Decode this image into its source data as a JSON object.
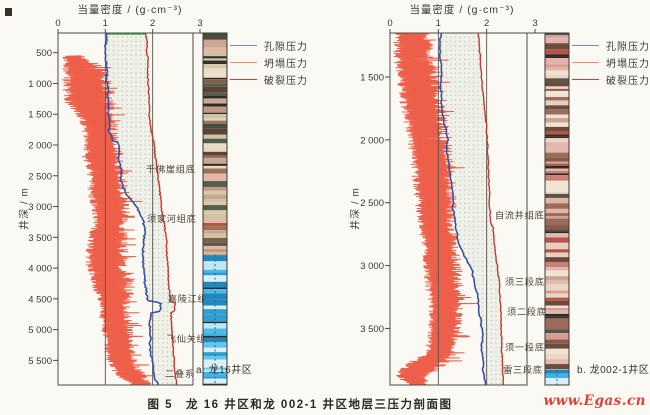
{
  "figure": {
    "caption": "图 5　龙 16 井区和龙 002-1 井区地层三压力剖面图",
    "watermark": "www.Egas.cn"
  },
  "legend": {
    "items": [
      {
        "label": "孔隙压力",
        "color": "#7d89aa"
      },
      {
        "label": "坍塌压力",
        "color": "#f0876e"
      },
      {
        "label": "破裂压力",
        "color": "#d0402f"
      }
    ]
  },
  "colors": {
    "pore_line": "#3a50a0",
    "collapse_line": "#ee5f49",
    "fracture_line": "#c8382c",
    "grid_line": "#55544c",
    "frame": "#4b4b44",
    "window_fill": "#edf0e8",
    "window_dots": "#b9c2b4",
    "window_top_edge": "#44a05a",
    "lith_border": "#3a3a32",
    "carbonate_line": "#1a6c94",
    "lith_clastic_a": [
      "#dcc8a8",
      "#c19a83",
      "#e6b5a8",
      "#7e604a",
      "#535e4c",
      "#b2593f",
      "#ecdfc9",
      "#5c4334",
      "#d0c2a2",
      "#9a715a",
      "#e2cfb6",
      "#45503f",
      "#caa794",
      "#e8d8c0"
    ],
    "lith_clastic_b": [
      "#e4b4ac",
      "#d79d92",
      "#c98175",
      "#ebd6c6",
      "#9d6b59",
      "#b5554a",
      "#f0e3d3",
      "#6b4b3d",
      "#debbae",
      "#56544c",
      "#cba494",
      "#e8cfc2",
      "#8a5a48"
    ],
    "lith_carbonate": [
      "#42b4e4",
      "#65c6ec",
      "#2f9fd3",
      "#d9effa",
      "#4dbbe9",
      "#2187bd",
      "#bfe6f5"
    ]
  },
  "chart_data": [
    {
      "type": "line",
      "id": "a",
      "panel_label": "a. 龙16井区",
      "title": "当量密度 / (g·cm⁻³)",
      "ylabel": "井深 / m",
      "xlim": [
        0,
        3
      ],
      "xticks": [
        "0",
        "1",
        "2",
        "3"
      ],
      "grid_x_values": [
        1,
        2
      ],
      "ylim": [
        180,
        5900
      ],
      "yticks": [
        {
          "v": 500,
          "label": "500"
        },
        {
          "v": 1000,
          "label": "1 000"
        },
        {
          "v": 1500,
          "label": "1 500"
        },
        {
          "v": 2000,
          "label": "2 000"
        },
        {
          "v": 2500,
          "label": "2 500"
        },
        {
          "v": 3000,
          "label": "3 000"
        },
        {
          "v": 3500,
          "label": "3 500"
        },
        {
          "v": 4000,
          "label": "4 000"
        },
        {
          "v": 4500,
          "label": "4 500"
        },
        {
          "v": 5000,
          "label": "5 000"
        },
        {
          "v": 5500,
          "label": "5 500"
        }
      ],
      "window_top_edge": true,
      "series": [
        {
          "name": "孔隙压力",
          "role": "pore",
          "points": [
            [
              180,
              1.04
            ],
            [
              350,
              1.01
            ],
            [
              500,
              1.0
            ],
            [
              650,
              1.02
            ],
            [
              800,
              1.04
            ],
            [
              950,
              1.03
            ],
            [
              1100,
              1.06
            ],
            [
              1250,
              1.05
            ],
            [
              1400,
              1.07
            ],
            [
              1550,
              1.06
            ],
            [
              1650,
              1.1
            ],
            [
              1750,
              1.07
            ],
            [
              1850,
              1.12
            ],
            [
              1930,
              1.14
            ],
            [
              1960,
              1.28
            ],
            [
              2100,
              1.3
            ],
            [
              2250,
              1.28
            ],
            [
              2400,
              1.34
            ],
            [
              2550,
              1.32
            ],
            [
              2700,
              1.38
            ],
            [
              2820,
              1.46
            ],
            [
              2950,
              1.6
            ],
            [
              3080,
              1.72
            ],
            [
              3200,
              1.79
            ],
            [
              3350,
              1.83
            ],
            [
              3500,
              1.82
            ],
            [
              3650,
              1.8
            ],
            [
              3800,
              1.79
            ],
            [
              3950,
              1.8
            ],
            [
              4100,
              1.82
            ],
            [
              4250,
              1.84
            ],
            [
              4400,
              1.87
            ],
            [
              4530,
              1.9
            ],
            [
              4560,
              2.16
            ],
            [
              4700,
              2.17
            ],
            [
              4730,
              1.96
            ],
            [
              4900,
              1.94
            ],
            [
              5100,
              1.95
            ],
            [
              5300,
              1.94
            ],
            [
              5500,
              1.99
            ],
            [
              5700,
              2.03
            ],
            [
              5820,
              2.06
            ],
            [
              5900,
              2.12
            ]
          ]
        },
        {
          "name": "坍塌压力",
          "role": "collapse",
          "envelope": [
            [
              550,
              0.1,
              0.5
            ],
            [
              700,
              0.06,
              0.95
            ],
            [
              850,
              0.1,
              1.1
            ],
            [
              1000,
              0.06,
              1.18
            ],
            [
              1150,
              0.1,
              1.22
            ],
            [
              1300,
              0.12,
              1.25
            ],
            [
              1450,
              0.3,
              1.18
            ],
            [
              1600,
              0.45,
              1.28
            ],
            [
              1750,
              0.5,
              1.3
            ],
            [
              1900,
              0.52,
              1.28
            ],
            [
              2050,
              0.55,
              1.33
            ],
            [
              2200,
              0.5,
              1.42
            ],
            [
              2350,
              0.58,
              1.38
            ],
            [
              2500,
              0.6,
              1.42
            ],
            [
              2650,
              0.64,
              1.48
            ],
            [
              2800,
              0.6,
              1.45
            ],
            [
              2950,
              0.68,
              1.52
            ],
            [
              3100,
              0.72,
              1.54
            ],
            [
              3250,
              0.74,
              1.5
            ],
            [
              3400,
              0.66,
              1.46
            ],
            [
              3550,
              0.62,
              1.48
            ],
            [
              3700,
              0.58,
              1.5
            ],
            [
              3850,
              0.56,
              1.46
            ],
            [
              4000,
              0.6,
              1.5
            ],
            [
              4150,
              0.66,
              1.55
            ],
            [
              4300,
              0.72,
              1.62
            ],
            [
              4450,
              0.8,
              1.58
            ],
            [
              4600,
              0.88,
              1.52
            ],
            [
              4750,
              0.86,
              1.55
            ],
            [
              4900,
              0.88,
              1.57
            ],
            [
              5050,
              0.92,
              1.6
            ],
            [
              5200,
              0.95,
              1.63
            ],
            [
              5350,
              0.98,
              1.66
            ],
            [
              5500,
              1.02,
              1.7
            ],
            [
              5650,
              1.12,
              1.8
            ],
            [
              5800,
              1.3,
              1.92
            ],
            [
              5900,
              1.55,
              2.0
            ]
          ]
        },
        {
          "name": "破裂压力",
          "role": "fracture",
          "points": [
            [
              180,
              1.84
            ],
            [
              300,
              1.89
            ],
            [
              450,
              1.87
            ],
            [
              600,
              1.9
            ],
            [
              800,
              1.89
            ],
            [
              1000,
              1.91
            ],
            [
              1200,
              1.92
            ],
            [
              1400,
              1.93
            ],
            [
              1600,
              1.94
            ],
            [
              1800,
              1.97
            ],
            [
              1950,
              2.03
            ],
            [
              2150,
              2.05
            ],
            [
              2350,
              2.08
            ],
            [
              2550,
              2.12
            ],
            [
              2750,
              2.15
            ],
            [
              2950,
              2.18
            ],
            [
              3150,
              2.21
            ],
            [
              3350,
              2.26
            ],
            [
              3550,
              2.29
            ],
            [
              3750,
              2.3
            ],
            [
              3950,
              2.32
            ],
            [
              4150,
              2.33
            ],
            [
              4350,
              2.35
            ],
            [
              4530,
              2.37
            ],
            [
              4560,
              2.47
            ],
            [
              4700,
              2.46
            ],
            [
              4730,
              2.39
            ],
            [
              4900,
              2.4
            ],
            [
              5100,
              2.41
            ],
            [
              5300,
              2.43
            ],
            [
              5500,
              2.45
            ],
            [
              5700,
              2.47
            ],
            [
              5900,
              2.51
            ]
          ]
        }
      ],
      "formation_tops": [
        {
          "label": "千佛崖组底",
          "depth": 2400,
          "label_x": 1.86
        },
        {
          "label": "须家河组底",
          "depth": 3200,
          "label_x": 1.88
        },
        {
          "label": "嘉陵江组底",
          "depth": 4500,
          "label_x": 2.32
        },
        {
          "label": "飞仙关组底",
          "depth": 5150,
          "label_x": 2.3
        },
        {
          "label": "二叠系",
          "depth": 5720,
          "label_x": 2.26
        }
      ],
      "lithology_column": [
        {
          "from": 180,
          "to": 3790,
          "type": "clastic_a"
        },
        {
          "from": 3790,
          "to": 5900,
          "type": "carbonate"
        }
      ]
    },
    {
      "type": "line",
      "id": "b",
      "panel_label": "b. 龙002-1井区",
      "title": "当量密度 / (g·cm⁻³)",
      "ylabel": "井深 / m",
      "xlim": [
        0,
        3
      ],
      "xticks": [
        "0",
        "1",
        "2",
        "3"
      ],
      "grid_x_values": [
        1,
        2
      ],
      "ylim": [
        1150,
        3950
      ],
      "yticks": [
        {
          "v": 1500,
          "label": "1 500"
        },
        {
          "v": 2000,
          "label": "2 000"
        },
        {
          "v": 2500,
          "label": "2 500"
        },
        {
          "v": 3000,
          "label": "3 000"
        },
        {
          "v": 3500,
          "label": "3 500"
        }
      ],
      "window_top_edge": false,
      "series": [
        {
          "name": "孔隙压力",
          "role": "pore",
          "points": [
            [
              1150,
              1.05
            ],
            [
              1300,
              1.04
            ],
            [
              1450,
              1.06
            ],
            [
              1600,
              1.05
            ],
            [
              1750,
              1.08
            ],
            [
              1880,
              1.12
            ],
            [
              1970,
              1.2
            ],
            [
              2100,
              1.18
            ],
            [
              2250,
              1.24
            ],
            [
              2400,
              1.28
            ],
            [
              2550,
              1.31
            ],
            [
              2700,
              1.36
            ],
            [
              2850,
              1.45
            ],
            [
              2950,
              1.58
            ],
            [
              3050,
              1.7
            ],
            [
              3150,
              1.76
            ],
            [
              3250,
              1.81
            ],
            [
              3350,
              1.84
            ],
            [
              3450,
              1.88
            ],
            [
              3530,
              1.92
            ],
            [
              3650,
              1.9
            ],
            [
              3750,
              1.92
            ],
            [
              3850,
              1.93
            ],
            [
              3950,
              1.97
            ]
          ]
        },
        {
          "name": "坍塌压力",
          "role": "collapse",
          "envelope": [
            [
              1150,
              0.06,
              0.82
            ],
            [
              1300,
              0.06,
              0.96
            ],
            [
              1450,
              0.1,
              1.05
            ],
            [
              1600,
              0.16,
              1.1
            ],
            [
              1750,
              0.22,
              1.16
            ],
            [
              1900,
              0.3,
              1.22
            ],
            [
              2050,
              0.36,
              1.28
            ],
            [
              2200,
              0.42,
              1.36
            ],
            [
              2350,
              0.46,
              1.32
            ],
            [
              2500,
              0.5,
              1.4
            ],
            [
              2650,
              0.56,
              1.36
            ],
            [
              2800,
              0.62,
              1.42
            ],
            [
              2950,
              0.66,
              1.46
            ],
            [
              3100,
              0.7,
              1.5
            ],
            [
              3250,
              0.76,
              1.56
            ],
            [
              3400,
              0.8,
              1.52
            ],
            [
              3550,
              0.76,
              1.46
            ],
            [
              3700,
              0.7,
              1.42
            ],
            [
              3780,
              0.3,
              1.2
            ],
            [
              3870,
              0.08,
              0.9
            ],
            [
              3950,
              0.35,
              0.8
            ]
          ]
        },
        {
          "name": "破裂压力",
          "role": "fracture",
          "points": [
            [
              1150,
              1.83
            ],
            [
              1300,
              1.86
            ],
            [
              1450,
              1.88
            ],
            [
              1600,
              1.92
            ],
            [
              1750,
              1.96
            ],
            [
              1900,
              2.0
            ],
            [
              2050,
              2.02
            ],
            [
              2200,
              2.03
            ],
            [
              2350,
              2.05
            ],
            [
              2500,
              2.06
            ],
            [
              2650,
              2.08
            ],
            [
              2700,
              2.13
            ],
            [
              2850,
              2.16
            ],
            [
              3000,
              2.22
            ],
            [
              3150,
              2.26
            ],
            [
              3300,
              2.28
            ],
            [
              3450,
              2.3
            ],
            [
              3600,
              2.31
            ],
            [
              3750,
              2.32
            ],
            [
              3900,
              2.34
            ],
            [
              3950,
              2.35
            ]
          ]
        }
      ],
      "formation_tops": [
        {
          "label": "自流井组底",
          "depth": 2600,
          "label_x": 2.17
        },
        {
          "label": "须三段底",
          "depth": 3130,
          "label_x": 2.38
        },
        {
          "label": "须二段底",
          "depth": 3370,
          "label_x": 2.42
        },
        {
          "label": "须一段底",
          "depth": 3650,
          "label_x": 2.38
        },
        {
          "label": "雷三段底",
          "depth": 3830,
          "label_x": 2.34
        }
      ],
      "lithology_column": [
        {
          "from": 1150,
          "to": 3830,
          "type": "clastic_b"
        },
        {
          "from": 3830,
          "to": 3950,
          "type": "carbonate"
        }
      ]
    }
  ]
}
